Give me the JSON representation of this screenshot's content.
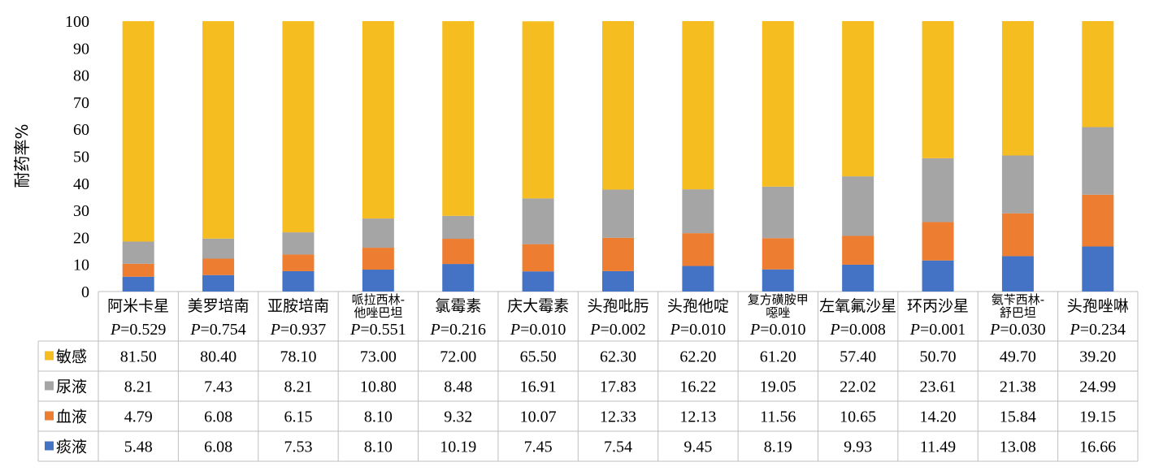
{
  "chart_data": {
    "type": "bar",
    "stacked": true,
    "ylabel": "耐药率%",
    "ylim": [
      0,
      100
    ],
    "yticks": [
      0,
      10,
      20,
      30,
      40,
      50,
      60,
      70,
      80,
      90,
      100
    ],
    "categories": [
      {
        "name": "阿米卡星",
        "p": "=0.529"
      },
      {
        "name": "美罗培南",
        "p": "=0.754"
      },
      {
        "name": "亚胺培南",
        "p": "=0.937"
      },
      {
        "name": "哌拉西林-他唑巴坦",
        "name_lines": [
          "哌拉西林-",
          "他唑巴坦"
        ],
        "p": "=0.551"
      },
      {
        "name": "氯霉素",
        "p": "=0.216"
      },
      {
        "name": "庆大霉素",
        "p": "=0.010"
      },
      {
        "name": "头孢吡肟",
        "p": "=0.002"
      },
      {
        "name": "头孢他啶",
        "p": "=0.010"
      },
      {
        "name": "复方磺胺甲噁唑",
        "name_lines": [
          "复方磺胺甲",
          "噁唑"
        ],
        "p": "=0.010"
      },
      {
        "name": "左氧氟沙星",
        "p": "=0.008"
      },
      {
        "name": "环丙沙星",
        "p": "=0.001"
      },
      {
        "name": "氨苄西林-舒巴坦",
        "name_lines": [
          "氨苄西林-",
          "舒巴坦"
        ],
        "p": "=0.030"
      },
      {
        "name": "头孢唑啉",
        "p": "=0.234"
      }
    ],
    "p_prefix": "P",
    "series": [
      {
        "name": "痰液",
        "color": "#4472C4",
        "values": [
          5.48,
          6.08,
          7.53,
          8.1,
          10.19,
          7.45,
          7.54,
          9.45,
          8.19,
          9.93,
          11.49,
          13.08,
          16.66
        ],
        "labels": [
          "5.48",
          "6.08",
          "7.53",
          "8.10",
          "10.19",
          "7.45",
          "7.54",
          "9.45",
          "8.19",
          "9.93",
          "11.49",
          "13.08",
          "16.66"
        ]
      },
      {
        "name": "血液",
        "color": "#ED7D31",
        "values": [
          4.79,
          6.08,
          6.15,
          8.1,
          9.32,
          10.07,
          12.33,
          12.13,
          11.56,
          10.65,
          14.2,
          15.84,
          19.15
        ],
        "labels": [
          "4.79",
          "6.08",
          "6.15",
          "8.10",
          "9.32",
          "10.07",
          "12.33",
          "12.13",
          "11.56",
          "10.65",
          "14.20",
          "15.84",
          "19.15"
        ]
      },
      {
        "name": "尿液",
        "color": "#A5A5A5",
        "values": [
          8.21,
          7.43,
          8.21,
          10.8,
          8.48,
          16.91,
          17.83,
          16.22,
          19.05,
          22.02,
          23.61,
          21.38,
          24.99
        ],
        "labels": [
          "8.21",
          "7.43",
          "8.21",
          "10.80",
          "8.48",
          "16.91",
          "17.83",
          "16.22",
          "19.05",
          "22.02",
          "23.61",
          "21.38",
          "24.99"
        ]
      },
      {
        "name": "敏感",
        "color": "#F5BD1F",
        "values": [
          81.5,
          80.4,
          78.1,
          73.0,
          72.0,
          65.5,
          62.3,
          62.2,
          61.2,
          57.4,
          50.7,
          49.7,
          39.2
        ],
        "labels": [
          "81.50",
          "80.40",
          "78.10",
          "73.00",
          "72.00",
          "65.50",
          "62.30",
          "62.20",
          "61.20",
          "57.40",
          "50.70",
          "49.70",
          "39.20"
        ]
      }
    ],
    "table_row_order": [
      "敏感",
      "尿液",
      "血液",
      "痰液"
    ]
  }
}
